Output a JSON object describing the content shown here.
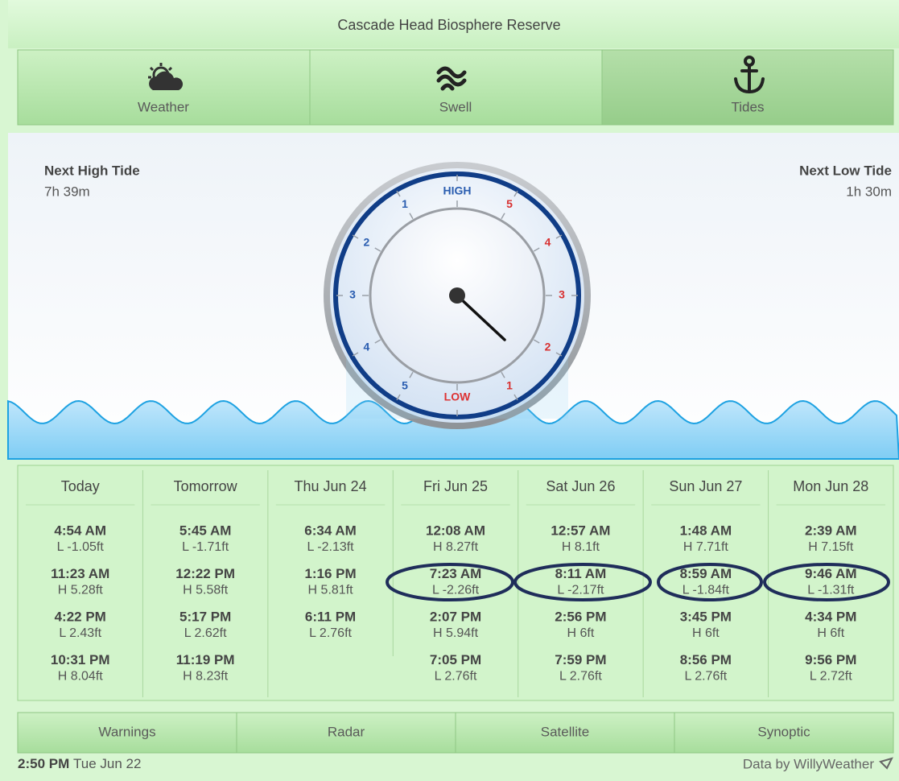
{
  "header": {
    "title": "Cascade Head Biosphere Reserve"
  },
  "tabs": [
    "Weather",
    "Swell",
    "Tides"
  ],
  "dial": {
    "next_high": {
      "label": "Next High Tide",
      "value": "7h 39m"
    },
    "next_low": {
      "label": "Next Low Tide",
      "value": "1h 30m"
    },
    "high_label": "HIGH",
    "low_label": "LOW",
    "left_scale": [
      "1",
      "2",
      "3",
      "4",
      "5"
    ],
    "right_scale": [
      "5",
      "4",
      "3",
      "2",
      "1"
    ]
  },
  "days": [
    {
      "day": "Today",
      "tides": [
        {
          "time": "4:54 AM",
          "level": "L -1.05ft"
        },
        {
          "time": "11:23 AM",
          "level": "H 5.28ft"
        },
        {
          "time": "4:22 PM",
          "level": "L 2.43ft"
        },
        {
          "time": "10:31 PM",
          "level": "H 8.04ft"
        }
      ]
    },
    {
      "day": "Tomorrow",
      "tides": [
        {
          "time": "5:45 AM",
          "level": "L -1.71ft"
        },
        {
          "time": "12:22 PM",
          "level": "H 5.58ft"
        },
        {
          "time": "5:17 PM",
          "level": "L 2.62ft"
        },
        {
          "time": "11:19 PM",
          "level": "H 8.23ft"
        }
      ]
    },
    {
      "day": "Thu Jun 24",
      "tides": [
        {
          "time": "6:34 AM",
          "level": "L -2.13ft"
        },
        {
          "time": "1:16 PM",
          "level": "H 5.81ft"
        },
        {
          "time": "6:11 PM",
          "level": "L 2.76ft"
        }
      ]
    },
    {
      "day": "Fri Jun 25",
      "tides": [
        {
          "time": "12:08 AM",
          "level": "H 8.27ft"
        },
        {
          "time": "7:23 AM",
          "level": "L -2.26ft"
        },
        {
          "time": "2:07 PM",
          "level": "H 5.94ft"
        },
        {
          "time": "7:05 PM",
          "level": "L 2.76ft"
        }
      ]
    },
    {
      "day": "Sat Jun 26",
      "tides": [
        {
          "time": "12:57 AM",
          "level": "H 8.1ft"
        },
        {
          "time": "8:11 AM",
          "level": "L -2.17ft"
        },
        {
          "time": "2:56 PM",
          "level": "H 6ft"
        },
        {
          "time": "7:59 PM",
          "level": "L 2.76ft"
        }
      ]
    },
    {
      "day": "Sun Jun 27",
      "tides": [
        {
          "time": "1:48 AM",
          "level": "H 7.71ft"
        },
        {
          "time": "8:59 AM",
          "level": "L -1.84ft"
        },
        {
          "time": "3:45 PM",
          "level": "H 6ft"
        },
        {
          "time": "8:56 PM",
          "level": "L 2.76ft"
        }
      ]
    },
    {
      "day": "Mon Jun 28",
      "tides": [
        {
          "time": "2:39 AM",
          "level": "H 7.15ft"
        },
        {
          "time": "9:46 AM",
          "level": "L -1.31ft"
        },
        {
          "time": "4:34 PM",
          "level": "H 6ft"
        },
        {
          "time": "9:56 PM",
          "level": "L 2.72ft"
        }
      ]
    }
  ],
  "nav": [
    "Warnings",
    "Radar",
    "Satellite",
    "Synoptic"
  ],
  "footer": {
    "time": "2:50 PM",
    "date": "Tue Jun 22",
    "credit": "Data by WillyWeather"
  }
}
